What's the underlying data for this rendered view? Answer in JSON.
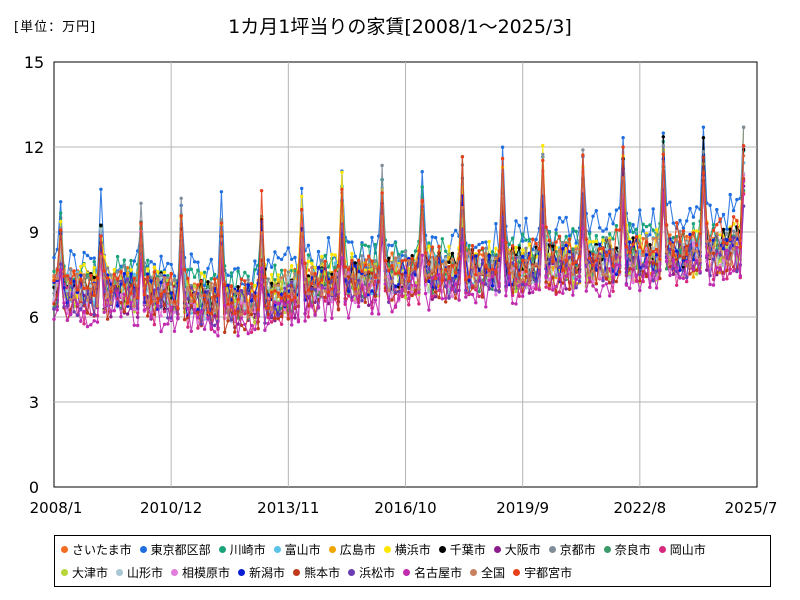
{
  "chart_data": {
    "type": "line",
    "unit_label": "[単位：万円]",
    "title": "1カ月1坪当りの家賃[2008/1～2025/3]",
    "xlabel": "",
    "ylabel": "",
    "x_start": "2008/1",
    "x_end": "2025/3",
    "x_tick_labels": [
      "2008/1",
      "2010/12",
      "2013/11",
      "2016/10",
      "2019/9",
      "2022/8",
      "2025/7"
    ],
    "ylim": [
      0,
      15
    ],
    "y_ticks": [
      0,
      3,
      6,
      9,
      12,
      15
    ],
    "grid": true,
    "legend_position": "bottom",
    "series": [
      {
        "name": "さいたま市",
        "color": "#f36c21",
        "base": 7.2,
        "trend": 1.3,
        "spike": 2.2
      },
      {
        "name": "東京都区部",
        "color": "#1f6fe0",
        "base": 7.8,
        "trend": 2.0,
        "spike": 2.4
      },
      {
        "name": "川崎市",
        "color": "#1aa37a",
        "base": 7.5,
        "trend": 1.6,
        "spike": 2.3
      },
      {
        "name": "富山市",
        "color": "#5bc2e7",
        "base": 7.0,
        "trend": 1.5,
        "spike": 2.2
      },
      {
        "name": "広島市",
        "color": "#f0a500",
        "base": 7.0,
        "trend": 1.2,
        "spike": 2.1
      },
      {
        "name": "横浜市",
        "color": "#ffe600",
        "base": 7.3,
        "trend": 1.5,
        "spike": 2.6
      },
      {
        "name": "千葉市",
        "color": "#000000",
        "base": 7.0,
        "trend": 1.6,
        "spike": 2.5
      },
      {
        "name": "大阪市",
        "color": "#8b1c8b",
        "base": 6.6,
        "trend": 1.6,
        "spike": 2.0
      },
      {
        "name": "京都市",
        "color": "#7f8c99",
        "base": 7.2,
        "trend": 1.4,
        "spike": 2.7
      },
      {
        "name": "奈良市",
        "color": "#3c9a6a",
        "base": 6.9,
        "trend": 1.4,
        "spike": 2.2
      },
      {
        "name": "岡山市",
        "color": "#d6287c",
        "base": 6.4,
        "trend": 1.6,
        "spike": 1.9
      },
      {
        "name": "大津市",
        "color": "#b7d63a",
        "base": 6.8,
        "trend": 1.4,
        "spike": 2.0
      },
      {
        "name": "山形市",
        "color": "#a9c6d3",
        "base": 6.9,
        "trend": 1.4,
        "spike": 2.1
      },
      {
        "name": "相模原市",
        "color": "#e37ddb",
        "base": 6.7,
        "trend": 1.5,
        "spike": 2.0
      },
      {
        "name": "新潟市",
        "color": "#0a1ed6",
        "base": 6.9,
        "trend": 1.6,
        "spike": 2.2
      },
      {
        "name": "熊本市",
        "color": "#c0391b",
        "base": 6.5,
        "trend": 1.7,
        "spike": 2.1
      },
      {
        "name": "浜松市",
        "color": "#6a3db3",
        "base": 6.7,
        "trend": 1.5,
        "spike": 2.0
      },
      {
        "name": "名古屋市",
        "color": "#c02bb0",
        "base": 6.2,
        "trend": 1.7,
        "spike": 2.0
      },
      {
        "name": "全国",
        "color": "#c8805e",
        "base": 7.0,
        "trend": 1.5,
        "spike": 2.3
      },
      {
        "name": "宇都宮市",
        "color": "#e8401a",
        "base": 7.1,
        "trend": 1.9,
        "spike": 2.8
      }
    ]
  }
}
